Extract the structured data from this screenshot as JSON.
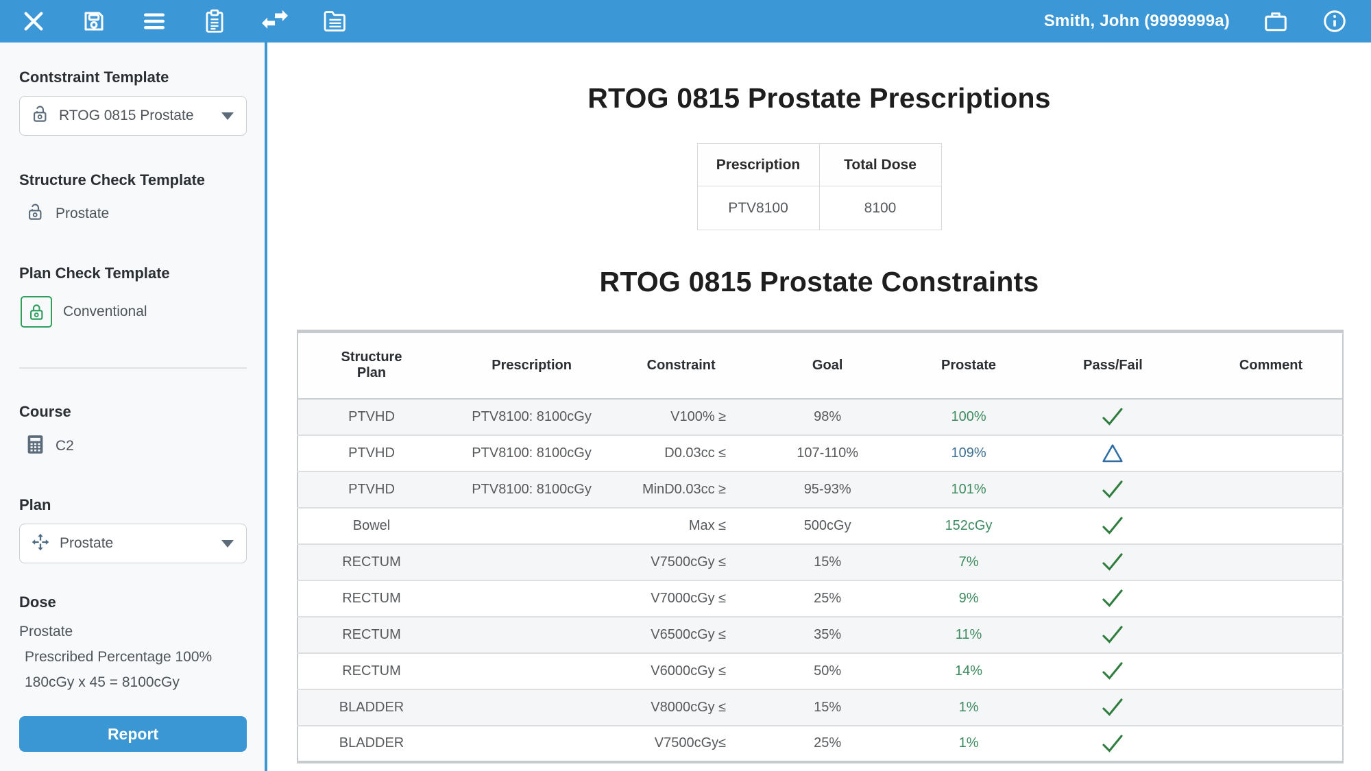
{
  "colors": {
    "accent_blue": "#3a97d4",
    "pass_green": "#2e7d3e",
    "result_green": "#3d8b5f",
    "warn_blue": "#2e6da4",
    "sidebar_bg": "#f7f9fb"
  },
  "toolbar": {
    "left_icons": [
      "close-icon",
      "save-icon",
      "menu-icon",
      "clipboard-icon",
      "transfer-icon",
      "notes-icon"
    ],
    "right_icons": [
      "briefcase-icon",
      "info-icon"
    ],
    "user": "Smith, John (9999999a)"
  },
  "sidebar": {
    "constraint_template": {
      "label": "Contstraint Template",
      "value": "RTOG 0815 Prostate",
      "icon": "lock-open-icon"
    },
    "structure_check_template": {
      "label": "Structure Check Template",
      "value": "Prostate",
      "icon": "lock-open-icon"
    },
    "plan_check_template": {
      "label": "Plan Check Template",
      "value": "Conventional",
      "icon": "lock-closed-icon"
    },
    "course": {
      "label": "Course",
      "value": "C2",
      "icon": "calculator-icon"
    },
    "plan": {
      "label": "Plan",
      "value": "Prostate",
      "icon": "move-arrows-icon"
    },
    "dose": {
      "label": "Dose",
      "lines": [
        "Prostate",
        "Prescribed Percentage 100%",
        "180cGy x 45 = 8100cGy"
      ]
    },
    "report_button": "Report"
  },
  "main": {
    "prescriptions": {
      "title": "RTOG 0815 Prostate Prescriptions",
      "headers": [
        "Prescription",
        "Total Dose"
      ],
      "rows": [
        {
          "prescription": "PTV8100",
          "total_dose": "8100"
        }
      ]
    },
    "constraints": {
      "title": "RTOG 0815 Prostate Constraints",
      "headers": [
        "Structure\nPlan",
        "Prescription",
        "Constraint",
        "Goal",
        "Prostate",
        "Pass/Fail",
        "Comment"
      ],
      "rows": [
        {
          "structure": "PTVHD",
          "prescription": "PTV8100: 8100cGy",
          "constraint": "V100% ≥",
          "goal": "98%",
          "result": "100%",
          "result_style": "green",
          "status": "pass",
          "comment": ""
        },
        {
          "structure": "PTVHD",
          "prescription": "PTV8100: 8100cGy",
          "constraint": "D0.03cc ≤",
          "goal": "107-110%",
          "result": "109%",
          "result_style": "blue",
          "status": "warn",
          "comment": ""
        },
        {
          "structure": "PTVHD",
          "prescription": "PTV8100: 8100cGy",
          "constraint": "MinD0.03cc ≥",
          "goal": "95-93%",
          "result": "101%",
          "result_style": "green",
          "status": "pass",
          "comment": ""
        },
        {
          "structure": "Bowel",
          "prescription": "",
          "constraint": "Max ≤",
          "goal": "500cGy",
          "result": "152cGy",
          "result_style": "green",
          "status": "pass",
          "comment": ""
        },
        {
          "structure": "RECTUM",
          "prescription": "",
          "constraint": "V7500cGy ≤",
          "goal": "15%",
          "result": "7%",
          "result_style": "green",
          "status": "pass",
          "comment": ""
        },
        {
          "structure": "RECTUM",
          "prescription": "",
          "constraint": "V7000cGy ≤",
          "goal": "25%",
          "result": "9%",
          "result_style": "green",
          "status": "pass",
          "comment": ""
        },
        {
          "structure": "RECTUM",
          "prescription": "",
          "constraint": "V6500cGy ≤",
          "goal": "35%",
          "result": "11%",
          "result_style": "green",
          "status": "pass",
          "comment": ""
        },
        {
          "structure": "RECTUM",
          "prescription": "",
          "constraint": "V6000cGy ≤",
          "goal": "50%",
          "result": "14%",
          "result_style": "green",
          "status": "pass",
          "comment": ""
        },
        {
          "structure": "BLADDER",
          "prescription": "",
          "constraint": "V8000cGy ≤",
          "goal": "15%",
          "result": "1%",
          "result_style": "green",
          "status": "pass",
          "comment": ""
        },
        {
          "structure": "BLADDER",
          "prescription": "",
          "constraint": "V7500cGy≤",
          "goal": "25%",
          "result": "1%",
          "result_style": "green",
          "status": "pass",
          "comment": ""
        }
      ]
    }
  }
}
